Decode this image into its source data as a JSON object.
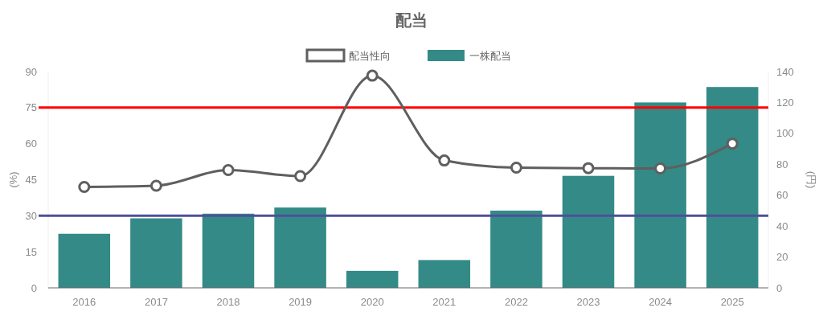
{
  "chart_data": {
    "type": "bar",
    "title": "配当",
    "categories": [
      "2016",
      "2017",
      "2018",
      "2019",
      "2020",
      "2021",
      "2022",
      "2023",
      "2024",
      "2025"
    ],
    "series": [
      {
        "name": "配当性向",
        "type": "line",
        "color": "#5f5f5f",
        "marker": "circle",
        "values": [
          42,
          42.5,
          49,
          46.5,
          88.3,
          53,
          50,
          49.8,
          49.7,
          60
        ]
      },
      {
        "name": "一株配当",
        "axis": "y2",
        "color": "#348a87",
        "values": [
          35,
          45,
          48,
          52,
          11,
          18,
          50,
          72.5,
          120,
          130
        ]
      }
    ],
    "ylabel": "(%)",
    "y2label": "(円)",
    "ylim": [
      0,
      90
    ],
    "yticks": [
      0,
      15,
      30,
      45,
      60,
      75,
      90
    ],
    "y2lim": [
      0,
      140
    ],
    "y2ticks": [
      0,
      20,
      40,
      60,
      80,
      100,
      120,
      140
    ],
    "ref_lines": [
      {
        "axis": "y",
        "value": 75,
        "color": "#ff0000"
      },
      {
        "axis": "y",
        "value": 30,
        "color": "#4f4f9a"
      }
    ],
    "legend": "top",
    "grid": false
  }
}
